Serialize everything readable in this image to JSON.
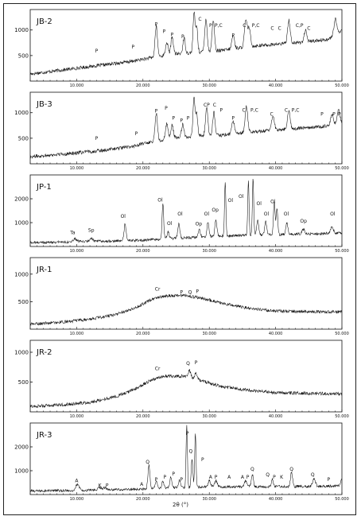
{
  "figure": {
    "x_axis_label": "2θ (°)"
  },
  "chart_data": [
    {
      "type": "line",
      "name": "JB-2",
      "xlim": [
        3,
        50
      ],
      "ylim": [
        0,
        1400
      ],
      "yticks": [
        500,
        1000
      ],
      "xticks": [
        {
          "v": 10,
          "t": "10.000"
        },
        {
          "v": 20,
          "t": "20.000"
        },
        {
          "v": 30,
          "t": "30.000"
        },
        {
          "v": 40,
          "t": "40.000"
        },
        {
          "v": 50,
          "t": "50.000"
        }
      ],
      "baseline": [
        [
          3,
          140
        ],
        [
          8,
          220
        ],
        [
          13,
          300
        ],
        [
          18,
          380
        ],
        [
          21,
          450
        ],
        [
          24,
          520
        ],
        [
          28,
          560
        ],
        [
          32,
          600
        ],
        [
          36,
          680
        ],
        [
          40,
          720
        ],
        [
          44,
          760
        ],
        [
          48,
          820
        ],
        [
          50,
          1000
        ]
      ],
      "noise": 35,
      "peaks": [
        {
          "x": 22.0,
          "h": 600,
          "w": 0.18
        },
        {
          "x": 23.6,
          "h": 250,
          "w": 0.18
        },
        {
          "x": 24.4,
          "h": 350,
          "w": 0.18
        },
        {
          "x": 26.2,
          "h": 300,
          "w": 0.18
        },
        {
          "x": 27.7,
          "h": 780,
          "w": 0.15
        },
        {
          "x": 28.1,
          "h": 500,
          "w": 0.15
        },
        {
          "x": 29.5,
          "h": 650,
          "w": 0.18
        },
        {
          "x": 30.6,
          "h": 600,
          "w": 0.18
        },
        {
          "x": 33.6,
          "h": 260,
          "w": 0.2
        },
        {
          "x": 35.5,
          "h": 500,
          "w": 0.2
        },
        {
          "x": 36.0,
          "h": 350,
          "w": 0.2
        },
        {
          "x": 42.0,
          "h": 450,
          "w": 0.2
        },
        {
          "x": 44.5,
          "h": 220,
          "w": 0.2
        },
        {
          "x": 49.0,
          "h": 300,
          "w": 0.2
        }
      ],
      "annotations": [
        {
          "x": 13.0,
          "y": 560,
          "t": "P"
        },
        {
          "x": 18.5,
          "y": 640,
          "t": "P"
        },
        {
          "x": 22.0,
          "y": 1080,
          "t": "P"
        },
        {
          "x": 23.2,
          "y": 940,
          "t": "P"
        },
        {
          "x": 24.4,
          "y": 880,
          "t": "P"
        },
        {
          "x": 26.0,
          "y": 840,
          "t": "P"
        },
        {
          "x": 28.6,
          "y": 1180,
          "t": "C"
        },
        {
          "x": 30.2,
          "y": 1060,
          "t": "P"
        },
        {
          "x": 31.4,
          "y": 1060,
          "t": "P,C"
        },
        {
          "x": 33.6,
          "y": 860,
          "t": "P"
        },
        {
          "x": 35.3,
          "y": 1060,
          "t": "C"
        },
        {
          "x": 37.0,
          "y": 1060,
          "t": "P,C"
        },
        {
          "x": 39.5,
          "y": 1000,
          "t": "C"
        },
        {
          "x": 40.6,
          "y": 1000,
          "t": "C"
        },
        {
          "x": 43.6,
          "y": 1060,
          "t": "C,P"
        },
        {
          "x": 45.0,
          "y": 1000,
          "t": "C"
        }
      ]
    },
    {
      "type": "line",
      "name": "JB-3",
      "xlim": [
        3,
        50
      ],
      "ylim": [
        0,
        1400
      ],
      "yticks": [
        500,
        1000
      ],
      "xticks": [
        {
          "v": 10,
          "t": "10.000"
        },
        {
          "v": 20,
          "t": "20.000"
        },
        {
          "v": 30,
          "t": "30.000"
        },
        {
          "v": 40,
          "t": "40.000"
        },
        {
          "v": 50,
          "t": "50.000"
        }
      ],
      "baseline": [
        [
          3,
          140
        ],
        [
          8,
          190
        ],
        [
          13,
          250
        ],
        [
          18,
          330
        ],
        [
          21,
          420
        ],
        [
          24,
          500
        ],
        [
          28,
          540
        ],
        [
          32,
          560
        ],
        [
          36,
          620
        ],
        [
          40,
          660
        ],
        [
          44,
          700
        ],
        [
          48,
          740
        ],
        [
          50,
          820
        ]
      ],
      "noise": 35,
      "peaks": [
        {
          "x": 22.0,
          "h": 550,
          "w": 0.18
        },
        {
          "x": 23.6,
          "h": 300,
          "w": 0.18
        },
        {
          "x": 24.4,
          "h": 250,
          "w": 0.18
        },
        {
          "x": 26.0,
          "h": 250,
          "w": 0.18
        },
        {
          "x": 27.7,
          "h": 750,
          "w": 0.15
        },
        {
          "x": 28.1,
          "h": 450,
          "w": 0.15
        },
        {
          "x": 29.6,
          "h": 550,
          "w": 0.18
        },
        {
          "x": 30.7,
          "h": 450,
          "w": 0.18
        },
        {
          "x": 33.6,
          "h": 250,
          "w": 0.2
        },
        {
          "x": 35.6,
          "h": 500,
          "w": 0.2
        },
        {
          "x": 39.6,
          "h": 300,
          "w": 0.2
        },
        {
          "x": 42.0,
          "h": 350,
          "w": 0.2
        },
        {
          "x": 48.5,
          "h": 200,
          "w": 0.2
        },
        {
          "x": 49.5,
          "h": 250,
          "w": 0.2
        }
      ],
      "annotations": [
        {
          "x": 13.0,
          "y": 470,
          "t": "P"
        },
        {
          "x": 19.0,
          "y": 560,
          "t": "P"
        },
        {
          "x": 22.0,
          "y": 1000,
          "t": "P"
        },
        {
          "x": 23.5,
          "y": 1060,
          "t": "P"
        },
        {
          "x": 24.6,
          "y": 860,
          "t": "P"
        },
        {
          "x": 25.8,
          "y": 820,
          "t": "P"
        },
        {
          "x": 26.8,
          "y": 860,
          "t": "P"
        },
        {
          "x": 29.6,
          "y": 1120,
          "t": "CP"
        },
        {
          "x": 30.8,
          "y": 1120,
          "t": "C"
        },
        {
          "x": 31.8,
          "y": 1020,
          "t": "P"
        },
        {
          "x": 33.6,
          "y": 860,
          "t": "P"
        },
        {
          "x": 35.2,
          "y": 1020,
          "t": "C"
        },
        {
          "x": 36.8,
          "y": 1020,
          "t": "P,C"
        },
        {
          "x": 39.4,
          "y": 940,
          "t": "C"
        },
        {
          "x": 41.6,
          "y": 1020,
          "t": "C"
        },
        {
          "x": 43.0,
          "y": 1020,
          "t": "P,C"
        },
        {
          "x": 47.0,
          "y": 940,
          "t": "P"
        },
        {
          "x": 48.8,
          "y": 940,
          "t": "P"
        },
        {
          "x": 49.6,
          "y": 940,
          "t": "P"
        }
      ]
    },
    {
      "type": "line",
      "name": "JP-1",
      "xlim": [
        3,
        50
      ],
      "ylim": [
        0,
        3000
      ],
      "yticks": [
        1000,
        2000
      ],
      "xticks": [
        {
          "v": 10,
          "t": "10.000"
        },
        {
          "v": 20,
          "t": "20.000"
        },
        {
          "v": 30,
          "t": "30.000"
        },
        {
          "v": 40,
          "t": "40.000"
        },
        {
          "v": 50,
          "t": "50.000"
        }
      ],
      "baseline": [
        [
          3,
          160
        ],
        [
          10,
          200
        ],
        [
          20,
          260
        ],
        [
          30,
          420
        ],
        [
          40,
          500
        ],
        [
          50,
          560
        ]
      ],
      "noise": 55,
      "peaks": [
        {
          "x": 9.8,
          "h": 120,
          "w": 0.25
        },
        {
          "x": 12.2,
          "h": 120,
          "w": 0.25
        },
        {
          "x": 17.3,
          "h": 700,
          "w": 0.15
        },
        {
          "x": 23.0,
          "h": 1500,
          "w": 0.12
        },
        {
          "x": 23.8,
          "h": 300,
          "w": 0.15
        },
        {
          "x": 25.4,
          "h": 600,
          "w": 0.15
        },
        {
          "x": 28.5,
          "h": 300,
          "w": 0.15
        },
        {
          "x": 29.8,
          "h": 600,
          "w": 0.15
        },
        {
          "x": 31.0,
          "h": 700,
          "w": 0.15
        },
        {
          "x": 32.4,
          "h": 2300,
          "w": 0.1
        },
        {
          "x": 35.9,
          "h": 2300,
          "w": 0.1
        },
        {
          "x": 36.6,
          "h": 2400,
          "w": 0.1
        },
        {
          "x": 37.3,
          "h": 600,
          "w": 0.15
        },
        {
          "x": 38.5,
          "h": 550,
          "w": 0.15
        },
        {
          "x": 39.8,
          "h": 1400,
          "w": 0.12
        },
        {
          "x": 40.2,
          "h": 1100,
          "w": 0.12
        },
        {
          "x": 41.7,
          "h": 500,
          "w": 0.15
        },
        {
          "x": 44.2,
          "h": 200,
          "w": 0.2
        },
        {
          "x": 48.5,
          "h": 300,
          "w": 0.2
        }
      ],
      "annotations": [
        {
          "x": 9.4,
          "y": 520,
          "t": "Ta"
        },
        {
          "x": 12.2,
          "y": 620,
          "t": "Sp"
        },
        {
          "x": 17.0,
          "y": 1200,
          "t": "Ol"
        },
        {
          "x": 22.6,
          "y": 1880,
          "t": "Ol"
        },
        {
          "x": 24.0,
          "y": 900,
          "t": "Ol"
        },
        {
          "x": 25.6,
          "y": 1300,
          "t": "Ol"
        },
        {
          "x": 28.4,
          "y": 880,
          "t": "Op"
        },
        {
          "x": 29.6,
          "y": 1300,
          "t": "Ol"
        },
        {
          "x": 30.9,
          "y": 1460,
          "t": "Op"
        },
        {
          "x": 33.2,
          "y": 1860,
          "t": "Ol"
        },
        {
          "x": 34.8,
          "y": 2040,
          "t": "Ol"
        },
        {
          "x": 37.5,
          "y": 1740,
          "t": "Ol"
        },
        {
          "x": 38.6,
          "y": 1300,
          "t": "Ol"
        },
        {
          "x": 39.6,
          "y": 1820,
          "t": "Ol"
        },
        {
          "x": 41.6,
          "y": 1300,
          "t": "Ol"
        },
        {
          "x": 44.2,
          "y": 1000,
          "t": "Op"
        },
        {
          "x": 48.6,
          "y": 1300,
          "t": "Ol"
        }
      ]
    },
    {
      "type": "line",
      "name": "JR-1",
      "xlim": [
        3,
        50
      ],
      "ylim": [
        0,
        1300
      ],
      "yticks": [
        500,
        1000
      ],
      "xticks": [
        {
          "v": 10,
          "t": "10.000"
        },
        {
          "v": 20,
          "t": "20.000"
        },
        {
          "v": 30,
          "t": "30.000"
        },
        {
          "v": 40,
          "t": "40.000"
        },
        {
          "v": 50,
          "t": "50.000"
        }
      ],
      "baseline": [
        [
          3,
          90
        ],
        [
          8,
          130
        ],
        [
          12,
          180
        ],
        [
          16,
          270
        ],
        [
          19,
          400
        ],
        [
          21,
          520
        ],
        [
          23,
          600
        ],
        [
          26,
          620
        ],
        [
          29,
          560
        ],
        [
          32,
          470
        ],
        [
          36,
          380
        ],
        [
          40,
          330
        ],
        [
          45,
          320
        ],
        [
          50,
          310
        ]
      ],
      "noise": 28,
      "peaks": [],
      "annotations": [
        {
          "x": 22.2,
          "y": 700,
          "t": "Cr"
        },
        {
          "x": 25.8,
          "y": 640,
          "t": "P"
        },
        {
          "x": 27.1,
          "y": 640,
          "t": "Q"
        },
        {
          "x": 28.2,
          "y": 660,
          "t": "P"
        }
      ]
    },
    {
      "type": "line",
      "name": "JR-2",
      "xlim": [
        3,
        50
      ],
      "ylim": [
        0,
        1200
      ],
      "yticks": [
        500,
        1000
      ],
      "xticks": [
        {
          "v": 10,
          "t": "10.000"
        },
        {
          "v": 20,
          "t": "20.000"
        },
        {
          "v": 30,
          "t": "30.000"
        },
        {
          "v": 40,
          "t": "40.000"
        },
        {
          "v": 50,
          "t": "50.000"
        }
      ],
      "baseline": [
        [
          3,
          90
        ],
        [
          8,
          120
        ],
        [
          12,
          160
        ],
        [
          16,
          260
        ],
        [
          19,
          390
        ],
        [
          21,
          520
        ],
        [
          23,
          600
        ],
        [
          26,
          600
        ],
        [
          29,
          520
        ],
        [
          32,
          420
        ],
        [
          36,
          360
        ],
        [
          40,
          320
        ],
        [
          45,
          310
        ],
        [
          50,
          300
        ]
      ],
      "noise": 28,
      "peaks": [
        {
          "x": 27.0,
          "h": 120,
          "w": 0.2
        },
        {
          "x": 28.0,
          "h": 100,
          "w": 0.2
        }
      ],
      "annotations": [
        {
          "x": 22.2,
          "y": 700,
          "t": "Cr"
        },
        {
          "x": 26.8,
          "y": 790,
          "t": "Q"
        },
        {
          "x": 28.0,
          "y": 800,
          "t": "P"
        }
      ]
    },
    {
      "type": "line",
      "name": "JR-3",
      "xlim": [
        3,
        50
      ],
      "ylim": [
        0,
        3000
      ],
      "yticks": [
        1000,
        2000
      ],
      "xticks": [
        {
          "v": 10,
          "t": "10.000"
        },
        {
          "v": 20,
          "t": "20.000"
        },
        {
          "v": 30,
          "t": "30.000"
        },
        {
          "v": 40,
          "t": "40.000"
        },
        {
          "v": 50,
          "t": "50.000"
        }
      ],
      "baseline": [
        [
          3,
          150
        ],
        [
          10,
          170
        ],
        [
          20,
          230
        ],
        [
          25,
          300
        ],
        [
          30,
          320
        ],
        [
          40,
          330
        ],
        [
          50,
          360
        ]
      ],
      "noise": 55,
      "peaks": [
        {
          "x": 10.1,
          "h": 250,
          "w": 0.25
        },
        {
          "x": 13.5,
          "h": 100,
          "w": 0.25
        },
        {
          "x": 14.3,
          "h": 100,
          "w": 0.25
        },
        {
          "x": 20.9,
          "h": 1000,
          "w": 0.15
        },
        {
          "x": 22.0,
          "h": 300,
          "w": 0.15
        },
        {
          "x": 23.0,
          "h": 300,
          "w": 0.15
        },
        {
          "x": 24.2,
          "h": 450,
          "w": 0.15
        },
        {
          "x": 25.5,
          "h": 300,
          "w": 0.15
        },
        {
          "x": 26.6,
          "h": 2600,
          "w": 0.1
        },
        {
          "x": 27.4,
          "h": 1200,
          "w": 0.12
        },
        {
          "x": 27.9,
          "h": 2300,
          "w": 0.1
        },
        {
          "x": 30.0,
          "h": 250,
          "w": 0.2
        },
        {
          "x": 31.0,
          "h": 250,
          "w": 0.2
        },
        {
          "x": 35.5,
          "h": 250,
          "w": 0.2
        },
        {
          "x": 36.5,
          "h": 500,
          "w": 0.15
        },
        {
          "x": 39.5,
          "h": 300,
          "w": 0.15
        },
        {
          "x": 42.4,
          "h": 600,
          "w": 0.15
        },
        {
          "x": 45.8,
          "h": 300,
          "w": 0.2
        },
        {
          "x": 50.0,
          "h": 300,
          "w": 0.2
        }
      ],
      "annotations": [
        {
          "x": 10.0,
          "y": 520,
          "t": "A"
        },
        {
          "x": 13.5,
          "y": 320,
          "t": "K"
        },
        {
          "x": 14.6,
          "y": 320,
          "t": "P"
        },
        {
          "x": 19.8,
          "y": 360,
          "t": "A"
        },
        {
          "x": 20.7,
          "y": 1300,
          "t": "Q"
        },
        {
          "x": 22.0,
          "y": 560,
          "t": "P"
        },
        {
          "x": 23.3,
          "y": 660,
          "t": "P"
        },
        {
          "x": 24.6,
          "y": 800,
          "t": "P"
        },
        {
          "x": 25.8,
          "y": 560,
          "t": "P"
        },
        {
          "x": 26.7,
          "y": 2500,
          "t": "P"
        },
        {
          "x": 27.2,
          "y": 1750,
          "t": "Q"
        },
        {
          "x": 29.0,
          "y": 1400,
          "t": "P"
        },
        {
          "x": 30.2,
          "y": 660,
          "t": "A"
        },
        {
          "x": 31.0,
          "y": 660,
          "t": "P"
        },
        {
          "x": 33.0,
          "y": 660,
          "t": "A"
        },
        {
          "x": 35.0,
          "y": 660,
          "t": "A"
        },
        {
          "x": 35.8,
          "y": 660,
          "t": "P"
        },
        {
          "x": 36.5,
          "y": 1000,
          "t": "Q"
        },
        {
          "x": 38.8,
          "y": 760,
          "t": "Q"
        },
        {
          "x": 39.8,
          "y": 660,
          "t": "P"
        },
        {
          "x": 40.9,
          "y": 660,
          "t": "K"
        },
        {
          "x": 42.4,
          "y": 1000,
          "t": "Q"
        },
        {
          "x": 45.6,
          "y": 760,
          "t": "Q"
        },
        {
          "x": 48.0,
          "y": 560,
          "t": "P"
        }
      ]
    }
  ]
}
